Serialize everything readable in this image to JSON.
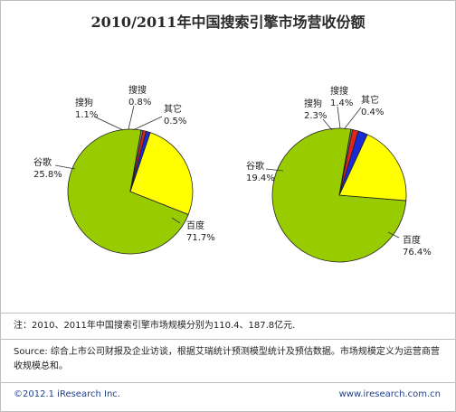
{
  "title": "2010/2011年中国搜索引擎市场营收份额",
  "chart_data": [
    {
      "type": "pie",
      "title": "",
      "unit": "%",
      "slices": [
        {
          "label": "百度",
          "value": 71.7,
          "display": "71.7%",
          "color": "#99cc00"
        },
        {
          "label": "谷歌",
          "value": 25.8,
          "display": "25.8%",
          "color": "#ffff00"
        },
        {
          "label": "搜狗",
          "value": 1.1,
          "display": "1.1%",
          "color": "#1a2bd6"
        },
        {
          "label": "搜搜",
          "value": 0.8,
          "display": "0.8%",
          "color": "#e0261c"
        },
        {
          "label": "其它",
          "value": 0.5,
          "display": "0.5%",
          "color": "#7a7a7a"
        }
      ]
    },
    {
      "type": "pie",
      "title": "",
      "unit": "%",
      "slices": [
        {
          "label": "百度",
          "value": 76.4,
          "display": "76.4%",
          "color": "#99cc00"
        },
        {
          "label": "谷歌",
          "value": 19.4,
          "display": "19.4%",
          "color": "#ffff00"
        },
        {
          "label": "搜狗",
          "value": 2.3,
          "display": "2.3%",
          "color": "#1a2bd6"
        },
        {
          "label": "搜搜",
          "value": 1.4,
          "display": "1.4%",
          "color": "#e0261c"
        },
        {
          "label": "其它",
          "value": 0.4,
          "display": "0.4%",
          "color": "#7a7a7a"
        }
      ]
    }
  ],
  "notes": {
    "note_text": "注：2010、2011年中国搜索引擎市场规模分别为110.4、187.8亿元.",
    "source_text": "Source: 综合上市公司财报及企业访谈，根据艾瑞统计预测模型统计及预估数据。市场规模定义为运营商营收规模总和。"
  },
  "footer": {
    "copyright": "©2012.1 iResearch Inc.",
    "website": "www.iresearch.com.cn"
  }
}
